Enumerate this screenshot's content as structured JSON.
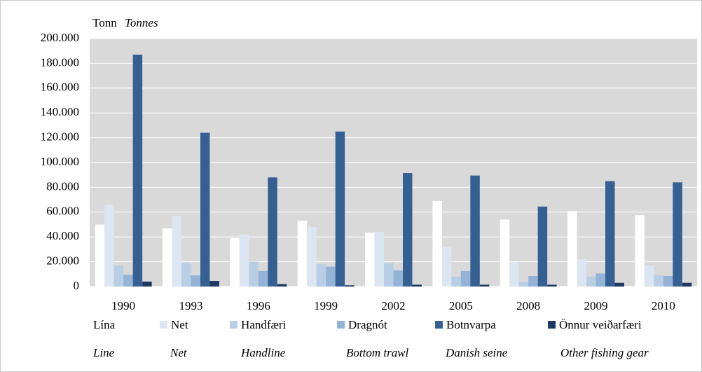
{
  "chart_data": {
    "type": "bar",
    "ylabel": "Tonn",
    "ylabel_en": "Tonnes",
    "categories": [
      "1990",
      "1993",
      "1996",
      "1999",
      "2002",
      "2005",
      "2008",
      "2009",
      "2010"
    ],
    "series": [
      {
        "name": "Lína",
        "name_en": "Line",
        "color": "#ffffff",
        "values": [
          50000,
          47000,
          39000,
          53000,
          43500,
          69000,
          54000,
          61000,
          57500
        ]
      },
      {
        "name": "Net",
        "name_en": "Net",
        "color": "#dce6f2",
        "values": [
          66000,
          57000,
          42000,
          48000,
          44000,
          32000,
          19500,
          22000,
          17000
        ]
      },
      {
        "name": "Handfæri",
        "name_en": "Handline",
        "color": "#b9cde5",
        "values": [
          17000,
          19000,
          20000,
          18000,
          19000,
          8000,
          3500,
          8000,
          9000
        ]
      },
      {
        "name": "Dragnót",
        "name_en": "Bottom trawl",
        "color": "#95b3d7",
        "values": [
          9500,
          9000,
          12500,
          16000,
          13000,
          12500,
          8500,
          10500,
          8500
        ]
      },
      {
        "name": "Botnvarpa",
        "name_en": "Danish seine",
        "color": "#376092",
        "values": [
          187000,
          124000,
          88000,
          125000,
          91500,
          89500,
          64500,
          85000,
          84000
        ]
      },
      {
        "name": "Önnur veiðarfæri",
        "name_en": "Other fishing gear",
        "color": "#1f3a60",
        "values": [
          4000,
          4500,
          2000,
          1000,
          1500,
          1500,
          1500,
          3000,
          3000
        ]
      }
    ],
    "ylim": [
      0,
      200000
    ],
    "yticks": [
      0,
      {
        "value": 20000,
        "label": "20.000"
      },
      {
        "value": 40000,
        "label": "40.000"
      },
      {
        "value": 60000,
        "label": "60.000"
      },
      {
        "value": 80000,
        "label": "80.000"
      },
      {
        "value": 100000,
        "label": "100.000"
      },
      {
        "value": 120000,
        "label": "120.000"
      },
      {
        "value": 140000,
        "label": "140.000"
      },
      {
        "value": 160000,
        "label": "160.000"
      },
      {
        "value": 180000,
        "label": "180.000"
      },
      {
        "value": 200000,
        "label": "200.000"
      }
    ],
    "grid": true
  }
}
